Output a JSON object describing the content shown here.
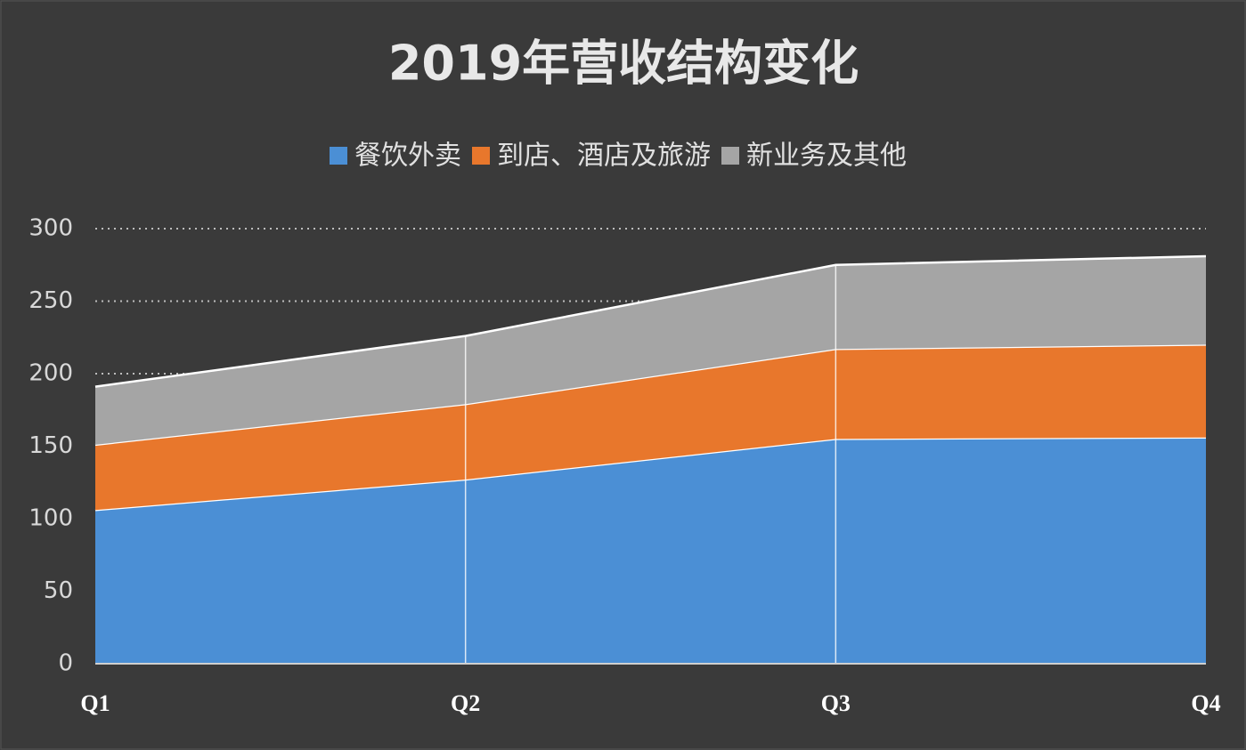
{
  "chart_data": {
    "type": "stacked_area",
    "title": "2019年营收结构变化",
    "categories": [
      "Q1",
      "Q2",
      "Q3",
      "Q4"
    ],
    "series": [
      {
        "name": "餐饮外卖",
        "color": "#4b8fd5",
        "values": [
          106,
          127,
          155,
          156
        ]
      },
      {
        "name": "到店、酒店及旅游",
        "color": "#e8772c",
        "values": [
          45,
          52,
          62,
          64
        ]
      },
      {
        "name": "新业务及其他",
        "color": "#a5a5a5",
        "values": [
          40,
          47,
          58,
          61
        ]
      }
    ],
    "ylim": [
      0,
      300
    ],
    "yticks": [
      0,
      50,
      100,
      150,
      200,
      250,
      300
    ],
    "grid": true,
    "legend": "top"
  }
}
